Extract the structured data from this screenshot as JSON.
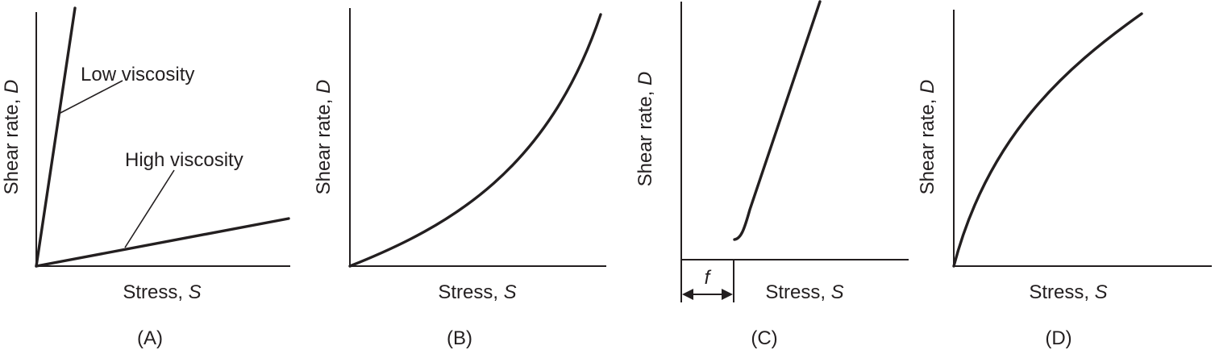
{
  "chart_data": [
    {
      "type": "line",
      "panel_label": "(A)",
      "xlabel": {
        "text": "Stress, ",
        "var": "S"
      },
      "ylabel": {
        "text": "Shear rate, ",
        "var": "D"
      },
      "xlim": [
        0,
        1
      ],
      "ylim": [
        0,
        1
      ],
      "series": [
        {
          "name": "Low viscosity",
          "x": [
            0,
            0.15
          ],
          "y": [
            0,
            1.0
          ]
        },
        {
          "name": "High viscosity",
          "x": [
            0,
            1.0
          ],
          "y": [
            0,
            0.18
          ]
        }
      ],
      "annotations": [
        "Low viscosity",
        "High viscosity"
      ]
    },
    {
      "type": "line",
      "panel_label": "(B)",
      "xlabel": {
        "text": "Stress, ",
        "var": "S"
      },
      "ylabel": {
        "text": "Shear rate, ",
        "var": "D"
      },
      "xlim": [
        0,
        1
      ],
      "ylim": [
        0,
        1
      ],
      "series": [
        {
          "x": [
            0,
            0.2,
            0.4,
            0.6,
            0.8,
            0.9,
            1.0
          ],
          "y": [
            0,
            0.09,
            0.2,
            0.35,
            0.57,
            0.74,
            0.98
          ]
        }
      ]
    },
    {
      "type": "line",
      "panel_label": "(C)",
      "xlabel": {
        "text": "Stress, ",
        "var": "S"
      },
      "ylabel": {
        "text": "Shear rate, ",
        "var": "D"
      },
      "xlim": [
        0,
        1
      ],
      "ylim": [
        0,
        1
      ],
      "yield_label": "f",
      "yield_value": 0.21,
      "series": [
        {
          "x": [
            0.21,
            0.24,
            0.3,
            0.45,
            0.53
          ],
          "y": [
            0.08,
            0.11,
            0.26,
            0.68,
            1.0
          ]
        }
      ]
    },
    {
      "type": "line",
      "panel_label": "(D)",
      "xlabel": {
        "text": "Stress, ",
        "var": "S"
      },
      "ylabel": {
        "text": "Shear rate, ",
        "var": "D"
      },
      "xlim": [
        0,
        1
      ],
      "ylim": [
        0,
        1
      ],
      "series": [
        {
          "x": [
            0,
            0.1,
            0.3,
            0.5,
            0.7,
            0.84
          ],
          "y": [
            0,
            0.3,
            0.62,
            0.8,
            0.91,
            0.97
          ]
        }
      ]
    }
  ]
}
